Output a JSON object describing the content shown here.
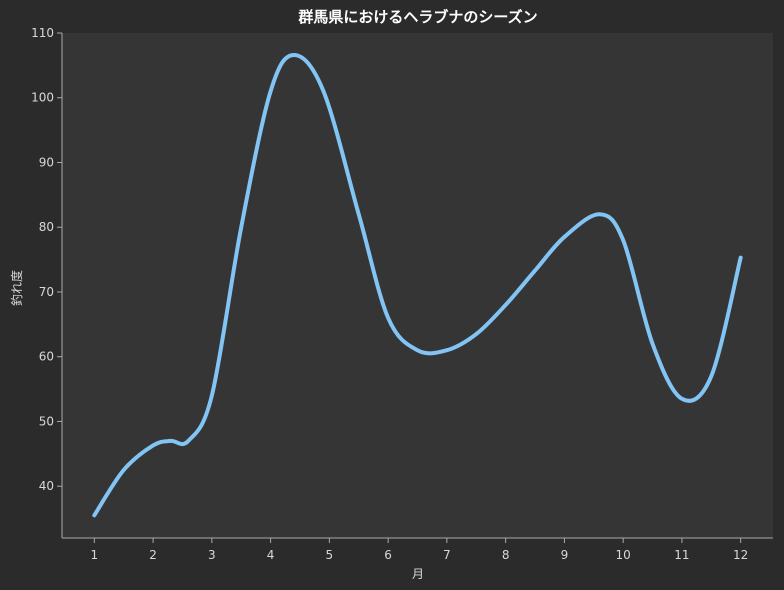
{
  "chart_data": {
    "type": "line",
    "title": "群馬県におけるヘラブナのシーズン",
    "xlabel": "月",
    "ylabel": "釣れ度",
    "xlim": [
      0.45,
      12.55
    ],
    "ylim": [
      32,
      110
    ],
    "xticks": [
      1,
      2,
      3,
      4,
      5,
      6,
      7,
      8,
      9,
      10,
      11,
      12
    ],
    "yticks": [
      40,
      50,
      60,
      70,
      80,
      90,
      100,
      110
    ],
    "grid": false,
    "legend": "none",
    "colors": {
      "background": "#2b2b2b",
      "plot_area": "#353535",
      "line": "#82c5f5",
      "axis": "#aaaaaa",
      "text": "#d8d8d8",
      "title": "#ffffff"
    },
    "series": [
      {
        "x": [
          1,
          1.5,
          2,
          2.3,
          2.6,
          3,
          3.5,
          4,
          4.4,
          4.9,
          5.5,
          6,
          6.5,
          7,
          7.5,
          8,
          8.5,
          9,
          9.6,
          10,
          10.5,
          11,
          11.5,
          12
        ],
        "y": [
          35.5,
          42.5,
          46.3,
          47,
          47,
          54,
          80,
          101,
          106.6,
          101,
          82,
          66,
          61,
          61,
          63.5,
          68,
          73.3,
          78.5,
          82,
          78,
          62,
          53.5,
          57,
          75.3
        ]
      }
    ]
  }
}
